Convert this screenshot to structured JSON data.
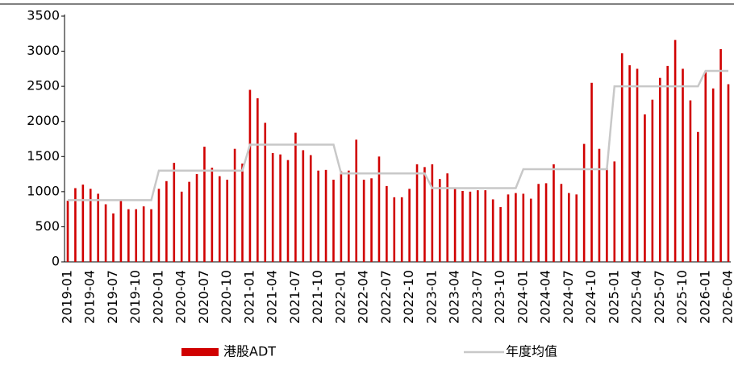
{
  "chart_data": {
    "type": "bar",
    "categories": [
      "2019-01",
      null,
      null,
      "2019-04",
      null,
      null,
      "2019-07",
      null,
      null,
      "2019-10",
      null,
      null,
      "2020-01",
      null,
      null,
      "2020-04",
      null,
      null,
      "2020-07",
      null,
      null,
      "2020-10",
      null,
      null,
      "2021-01",
      null,
      null,
      "2021-04",
      null,
      null,
      "2021-07",
      null,
      null,
      "2021-10",
      null,
      null,
      "2022-01",
      null,
      null,
      "2022-04",
      null,
      null,
      "2022-07",
      null,
      null,
      "2022-10",
      null,
      null,
      "2023-01",
      null,
      null,
      "2023-04",
      null,
      null,
      "2023-07",
      null,
      null,
      "2023-10",
      null,
      null,
      "2024-01",
      null,
      null,
      "2024-04",
      null,
      null,
      "2024-07",
      null,
      null,
      "2024-10",
      null,
      null,
      "2025-01",
      null,
      null,
      "2025-04",
      null,
      null,
      "2025-07",
      null,
      null,
      "2025-10",
      null,
      null,
      "2026-01",
      null,
      null,
      "2026-04"
    ],
    "series": [
      {
        "name": "港股ADT",
        "type": "bar",
        "color": "#d00000",
        "values": [
          870,
          1050,
          1100,
          1040,
          970,
          820,
          690,
          880,
          750,
          750,
          790,
          750,
          1040,
          1150,
          1410,
          1000,
          1140,
          1250,
          1640,
          1340,
          1220,
          1170,
          1610,
          1400,
          2450,
          2330,
          1980,
          1550,
          1530,
          1450,
          1840,
          1590,
          1520,
          1300,
          1310,
          1170,
          1290,
          1300,
          1740,
          1170,
          1190,
          1500,
          1080,
          920,
          920,
          1040,
          1390,
          1350,
          1390,
          1180,
          1260,
          1060,
          1010,
          1000,
          1020,
          1020,
          890,
          780,
          960,
          980,
          970,
          900,
          1110,
          1120,
          1390,
          1110,
          980,
          960,
          1680,
          2550,
          1610,
          1330,
          1430,
          2970,
          2800,
          2750,
          2100,
          2310,
          2620,
          2790,
          3160,
          2750,
          2300,
          1850,
          2700,
          2470,
          3030,
          2530
        ]
      },
      {
        "name": "年度均值",
        "type": "line",
        "color": "#c8c8c8",
        "values": [
          880,
          880,
          880,
          880,
          880,
          880,
          880,
          880,
          880,
          880,
          880,
          880,
          1300,
          1300,
          1300,
          1300,
          1300,
          1300,
          1300,
          1300,
          1300,
          1300,
          1300,
          1300,
          1670,
          1670,
          1670,
          1670,
          1670,
          1670,
          1670,
          1670,
          1670,
          1670,
          1670,
          1670,
          1260,
          1260,
          1260,
          1260,
          1260,
          1260,
          1260,
          1260,
          1260,
          1260,
          1260,
          1260,
          1050,
          1050,
          1050,
          1050,
          1050,
          1050,
          1050,
          1050,
          1050,
          1050,
          1050,
          1050,
          1320,
          1320,
          1320,
          1320,
          1320,
          1320,
          1320,
          1320,
          1320,
          1320,
          1320,
          1320,
          2500,
          2500,
          2500,
          2500,
          2500,
          2500,
          2500,
          2500,
          2500,
          2500,
          2500,
          2500,
          2720,
          2720,
          2720,
          2720
        ]
      }
    ],
    "ylim": [
      0,
      3500
    ],
    "yticks": [
      0,
      500,
      1000,
      1500,
      2000,
      2500,
      3000,
      3500
    ],
    "grid": false,
    "legend": "bottom"
  }
}
